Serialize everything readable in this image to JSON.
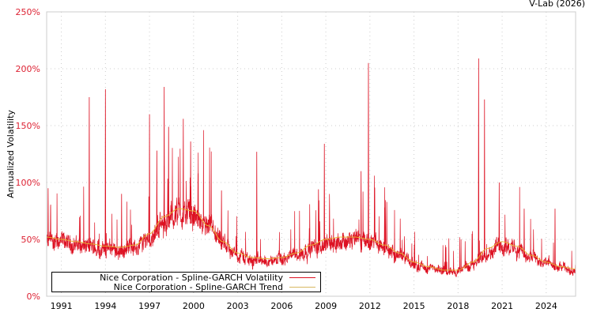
{
  "credit": "V-Lab (2026)",
  "chart_data": {
    "type": "line",
    "title": "",
    "xlabel": "",
    "ylabel": "Annualized Volatility",
    "xlim": [
      1990.0,
      2026.0
    ],
    "ylim": [
      0,
      250
    ],
    "y_ticks": [
      "0%",
      "50%",
      "100%",
      "150%",
      "200%",
      "250%"
    ],
    "y_tick_values": [
      0,
      50,
      100,
      150,
      200,
      250
    ],
    "x_ticks": [
      "1991",
      "1994",
      "1997",
      "2000",
      "2003",
      "2006",
      "2009",
      "2012",
      "2015",
      "2018",
      "2021",
      "2024"
    ],
    "x_tick_values": [
      1991,
      1994,
      1997,
      2000,
      2003,
      2006,
      2009,
      2012,
      2015,
      2018,
      2021,
      2024
    ],
    "grid": true,
    "legend_position": "bottom-left",
    "series": [
      {
        "name": "Nice Corporation - Spline-GARCH Volatility",
        "color": "#dd1122",
        "note": "daily series, approximated by trend-scaled noise plus spikes",
        "spikes": [
          [
            1990.1,
            95
          ],
          [
            1992.9,
            175
          ],
          [
            1994.0,
            182
          ],
          [
            1995.1,
            90
          ],
          [
            1997.0,
            160
          ],
          [
            1997.5,
            128
          ],
          [
            1998.0,
            184
          ],
          [
            1998.3,
            149
          ],
          [
            1999.3,
            156
          ],
          [
            1999.8,
            136
          ],
          [
            2000.3,
            108
          ],
          [
            2001.9,
            93
          ],
          [
            2004.3,
            127
          ],
          [
            2008.5,
            94
          ],
          [
            2008.9,
            134
          ],
          [
            2011.4,
            110
          ],
          [
            2011.9,
            205
          ],
          [
            2013.0,
            78
          ],
          [
            2019.4,
            209
          ],
          [
            2019.8,
            173
          ],
          [
            2020.8,
            100
          ],
          [
            2022.5,
            77
          ],
          [
            2024.6,
            77
          ]
        ]
      },
      {
        "name": "Nice Corporation - Spline-GARCH Trend",
        "color": "#e8b830",
        "x": [
          1990,
          1991,
          1992,
          1993,
          1994,
          1995,
          1996,
          1997,
          1998,
          1999,
          2000,
          2001,
          2002,
          2003,
          2004,
          2005,
          2006,
          2007,
          2008,
          2009,
          2010,
          2011,
          2012,
          2013,
          2014,
          2015,
          2016,
          2017,
          2018,
          2019,
          2020,
          2021,
          2022,
          2023,
          2024,
          2025,
          2026
        ],
        "values": [
          52,
          50,
          48,
          46,
          44,
          43,
          45,
          55,
          70,
          77,
          75,
          62,
          48,
          38,
          34,
          33,
          34,
          38,
          45,
          50,
          52,
          52,
          50,
          45,
          38,
          30,
          26,
          23,
          23,
          30,
          42,
          48,
          44,
          36,
          30,
          26,
          24
        ]
      }
    ]
  }
}
